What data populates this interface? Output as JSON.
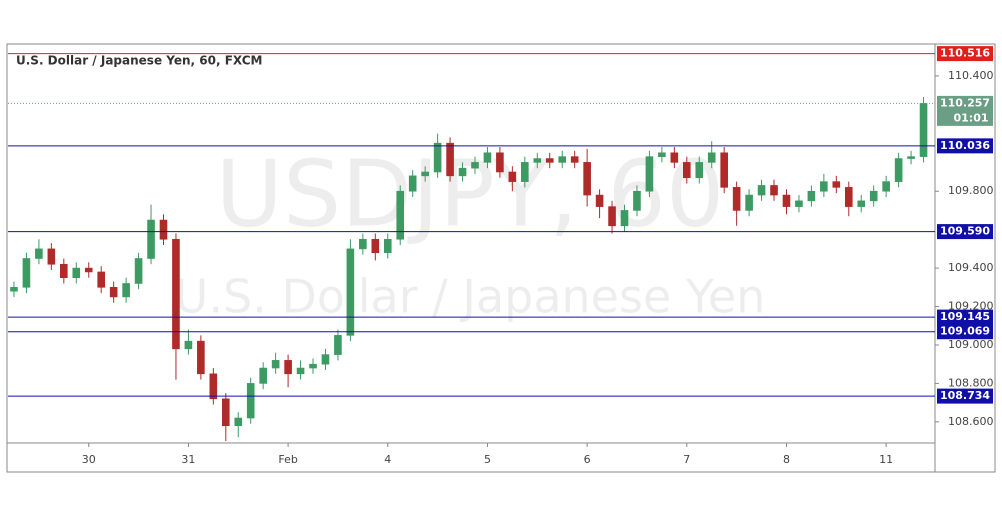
{
  "chart_data": {
    "type": "candlestick",
    "title": "U.S. Dollar / Japanese Yen, 60, FXCM",
    "watermark": "USDJPY, 60",
    "watermark_subtitle": "U.S. Dollar / Japanese Yen",
    "up_color": "#3c9a62",
    "down_color": "#b02a2a",
    "xlim": [
      -0.81,
      8.49
    ],
    "ylim": [
      108.49,
      110.566
    ],
    "xticks": [
      {
        "value": 0,
        "label": "30"
      },
      {
        "value": 1,
        "label": "31"
      },
      {
        "value": 2,
        "label": "Feb"
      },
      {
        "value": 3,
        "label": "4"
      },
      {
        "value": 4,
        "label": "5"
      },
      {
        "value": 5,
        "label": "6"
      },
      {
        "value": 6,
        "label": "7"
      },
      {
        "value": 7,
        "label": "8"
      },
      {
        "value": 8,
        "label": "11"
      }
    ],
    "yticks": [
      {
        "value": 110.4,
        "label": "110.400"
      },
      {
        "value": 109.8,
        "label": "109.800"
      },
      {
        "value": 109.4,
        "label": "109.400"
      },
      {
        "value": 109.2,
        "label": "109.200"
      },
      {
        "value": 109,
        "label": "109.000"
      },
      {
        "value": 108.8,
        "label": "108.800"
      },
      {
        "value": 108.6,
        "label": "108.600"
      }
    ],
    "levels": [
      {
        "value": 110.516,
        "label": "110.516",
        "color": "#e0201b"
      },
      {
        "value": 110.036,
        "label": "110.036",
        "color": "#1010a8"
      },
      {
        "value": 109.59,
        "label": "109.590",
        "color": "#1010a8"
      },
      {
        "value": 109.145,
        "label": "109.145",
        "color": "#1010a8"
      },
      {
        "value": 109.069,
        "label": "109.069",
        "color": "#1010a8"
      },
      {
        "value": 108.734,
        "label": "108.734",
        "color": "#1010a8"
      }
    ],
    "last_price": {
      "value": 110.257,
      "label": "110.257",
      "countdown": "01:01",
      "color": "#6a9f85"
    },
    "x": [
      -0.75,
      -0.625,
      -0.5,
      -0.375,
      -0.25,
      -0.125,
      0,
      0.125,
      0.25,
      0.375,
      0.5,
      0.625,
      0.75,
      0.875,
      1,
      1.125,
      1.25,
      1.375,
      1.5,
      1.625,
      1.75,
      1.875,
      2,
      2.125,
      2.25,
      2.375,
      2.5,
      2.625,
      2.75,
      2.875,
      3,
      3.125,
      3.25,
      3.375,
      3.5,
      3.625,
      3.75,
      3.875,
      4,
      4.125,
      4.25,
      4.375,
      4.5,
      4.625,
      4.75,
      4.875,
      5,
      5.125,
      5.25,
      5.375,
      5.5,
      5.625,
      5.75,
      5.875,
      6,
      6.125,
      6.25,
      6.375,
      6.5,
      6.625,
      6.75,
      6.875,
      7,
      7.125,
      7.25,
      7.375,
      7.5,
      7.625,
      7.75,
      7.875,
      8,
      8.125,
      8.25,
      8.375
    ],
    "open": [
      109.28,
      109.3,
      109.45,
      109.5,
      109.42,
      109.35,
      109.4,
      109.38,
      109.3,
      109.25,
      109.32,
      109.45,
      109.65,
      109.55,
      108.98,
      109.02,
      108.85,
      108.72,
      108.58,
      108.62,
      108.8,
      108.88,
      108.92,
      108.85,
      108.88,
      108.9,
      108.95,
      109.05,
      109.5,
      109.55,
      109.48,
      109.55,
      109.8,
      109.88,
      109.9,
      110.05,
      109.88,
      109.92,
      109.95,
      110.0,
      109.9,
      109.85,
      109.95,
      109.97,
      109.95,
      109.98,
      109.95,
      109.78,
      109.72,
      109.62,
      109.7,
      109.8,
      109.98,
      110.0,
      109.95,
      109.87,
      109.95,
      110.0,
      109.82,
      109.7,
      109.78,
      109.83,
      109.78,
      109.72,
      109.75,
      109.8,
      109.85,
      109.82,
      109.72,
      109.75,
      109.8,
      109.85,
      109.97,
      109.98
    ],
    "high": [
      109.33,
      109.48,
      109.55,
      109.53,
      109.45,
      109.43,
      109.43,
      109.41,
      109.33,
      109.35,
      109.48,
      109.73,
      109.68,
      109.58,
      109.08,
      109.05,
      108.88,
      108.75,
      108.65,
      108.83,
      108.91,
      108.96,
      108.95,
      108.92,
      108.93,
      108.98,
      109.08,
      109.55,
      109.58,
      109.58,
      109.58,
      109.83,
      109.91,
      109.93,
      110.1,
      110.08,
      109.95,
      109.98,
      110.03,
      110.03,
      109.93,
      109.98,
      110.0,
      110.0,
      110.01,
      110.01,
      110.02,
      109.81,
      109.75,
      109.73,
      109.83,
      110.01,
      110.03,
      110.03,
      109.98,
      109.98,
      110.06,
      110.03,
      109.85,
      109.81,
      109.86,
      109.86,
      109.81,
      109.78,
      109.83,
      109.89,
      109.88,
      109.85,
      109.78,
      109.83,
      109.88,
      110.0,
      110.01,
      110.29
    ],
    "low": [
      109.25,
      109.27,
      109.42,
      109.39,
      109.32,
      109.32,
      109.35,
      109.27,
      109.22,
      109.22,
      109.29,
      109.42,
      109.52,
      108.82,
      108.95,
      108.82,
      108.69,
      108.5,
      108.52,
      108.59,
      108.77,
      108.85,
      108.78,
      108.82,
      108.85,
      108.87,
      108.92,
      109.02,
      109.47,
      109.44,
      109.45,
      109.52,
      109.77,
      109.85,
      109.87,
      109.85,
      109.85,
      109.89,
      109.92,
      109.87,
      109.8,
      109.82,
      109.92,
      109.92,
      109.92,
      109.92,
      109.72,
      109.66,
      109.58,
      109.59,
      109.67,
      109.77,
      109.95,
      109.92,
      109.84,
      109.84,
      109.92,
      109.79,
      109.62,
      109.67,
      109.75,
      109.75,
      109.68,
      109.69,
      109.72,
      109.77,
      109.79,
      109.67,
      109.69,
      109.72,
      109.77,
      109.82,
      109.94,
      109.95
    ],
    "close": [
      109.3,
      109.45,
      109.5,
      109.42,
      109.35,
      109.4,
      109.38,
      109.3,
      109.25,
      109.32,
      109.45,
      109.65,
      109.55,
      108.98,
      109.02,
      108.85,
      108.72,
      108.58,
      108.62,
      108.8,
      108.88,
      108.92,
      108.85,
      108.88,
      108.9,
      108.95,
      109.05,
      109.5,
      109.55,
      109.48,
      109.55,
      109.8,
      109.88,
      109.9,
      110.05,
      109.88,
      109.92,
      109.95,
      110.0,
      109.9,
      109.85,
      109.95,
      109.97,
      109.95,
      109.98,
      109.95,
      109.78,
      109.72,
      109.62,
      109.7,
      109.8,
      109.98,
      110.0,
      109.95,
      109.87,
      109.95,
      110.0,
      109.82,
      109.7,
      109.78,
      109.83,
      109.78,
      109.72,
      109.75,
      109.8,
      109.85,
      109.82,
      109.72,
      109.75,
      109.8,
      109.85,
      109.97,
      109.98,
      110.257
    ]
  }
}
